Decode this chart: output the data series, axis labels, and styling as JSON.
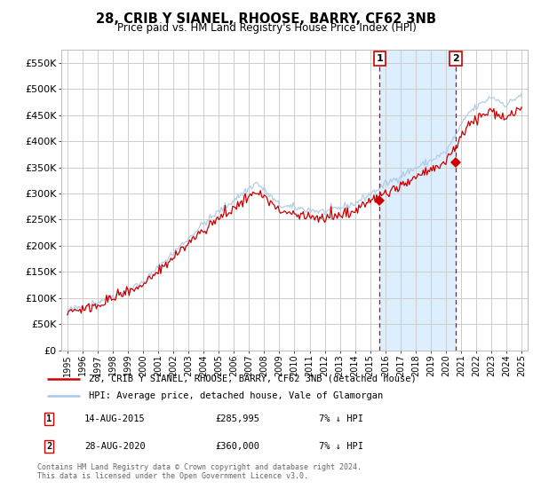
{
  "title": "28, CRIB Y SIANEL, RHOOSE, BARRY, CF62 3NB",
  "subtitle": "Price paid vs. HM Land Registry's House Price Index (HPI)",
  "ylim": [
    0,
    575000
  ],
  "yticks": [
    0,
    50000,
    100000,
    150000,
    200000,
    250000,
    300000,
    350000,
    400000,
    450000,
    500000,
    550000
  ],
  "ytick_labels": [
    "£0",
    "£50K",
    "£100K",
    "£150K",
    "£200K",
    "£250K",
    "£300K",
    "£350K",
    "£400K",
    "£450K",
    "£500K",
    "£550K"
  ],
  "x_start_year": 1995,
  "x_end_year": 2025,
  "purchase1_date": 2015.62,
  "purchase1_price": 285995,
  "purchase1_label": "1",
  "purchase2_date": 2020.65,
  "purchase2_price": 360000,
  "purchase2_label": "2",
  "hpi_color": "#aac8e8",
  "price_color": "#cc0000",
  "vline_color": "#cc0000",
  "grid_color": "#cccccc",
  "background_color": "#ffffff",
  "highlight_color": "#ddeeff",
  "legend1_text": "28, CRIB Y SIANEL, RHOOSE, BARRY, CF62 3NB (detached house)",
  "legend2_text": "HPI: Average price, detached house, Vale of Glamorgan",
  "note1_label": "1",
  "note1_date": "14-AUG-2015",
  "note1_price": "£285,995",
  "note1_hpi": "7% ↓ HPI",
  "note2_label": "2",
  "note2_date": "28-AUG-2020",
  "note2_price": "£360,000",
  "note2_hpi": "7% ↓ HPI",
  "footer": "Contains HM Land Registry data © Crown copyright and database right 2024.\nThis data is licensed under the Open Government Licence v3.0."
}
